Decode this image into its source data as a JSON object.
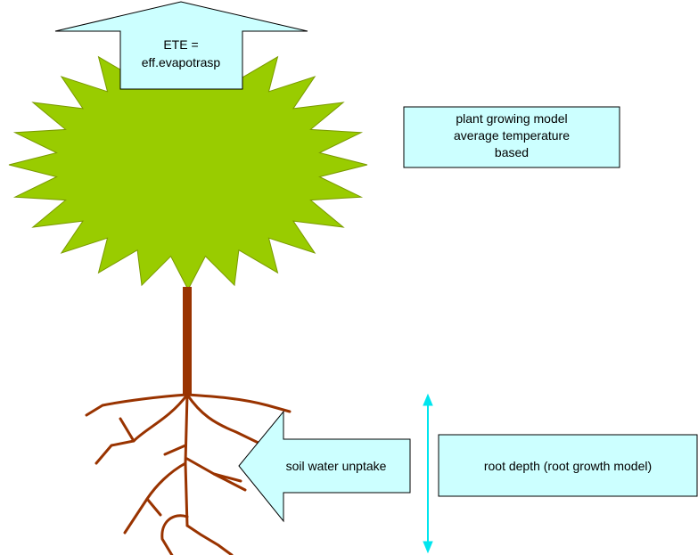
{
  "evapotranspiration_arrow": {
    "lines": [
      "ETE =",
      "eff.evapotrasp"
    ]
  },
  "plant_model_box": {
    "lines": [
      "plant growing model",
      "average temperature",
      "based"
    ]
  },
  "uptake_arrow": {
    "label": "soil water unptake"
  },
  "root_depth_box": {
    "label": "root depth (root growth model)"
  }
}
